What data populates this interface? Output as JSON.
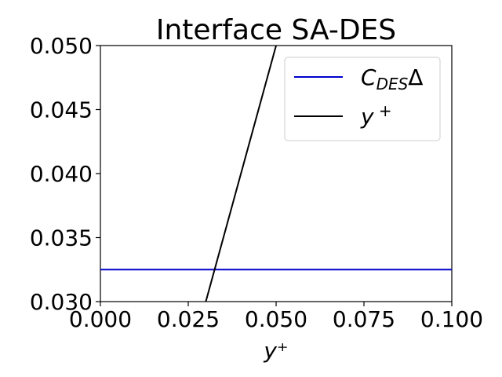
{
  "chart_data": {
    "type": "line",
    "title": "Interface SA-DES",
    "xlabel": "y⁺",
    "ylabel": "",
    "xlim": [
      0.0,
      0.1
    ],
    "ylim": [
      0.03,
      0.05
    ],
    "xticks": [
      "0.000",
      "0.025",
      "0.050",
      "0.075",
      "0.100"
    ],
    "yticks": [
      "0.030",
      "0.035",
      "0.040",
      "0.045",
      "0.050"
    ],
    "xtick_values": [
      0.0,
      0.025,
      0.05,
      0.075,
      0.1
    ],
    "ytick_values": [
      0.03,
      0.035,
      0.04,
      0.045,
      0.05
    ],
    "grid": false,
    "legend_position": "top-right",
    "series": [
      {
        "name": "C_DESΔ",
        "color": "#0000cc",
        "x": [
          0.0,
          0.1
        ],
        "y": [
          0.0325,
          0.0325
        ]
      },
      {
        "name": "y⁺",
        "color": "#000000",
        "x": [
          0.03,
          0.05
        ],
        "y": [
          0.03,
          0.05
        ]
      }
    ]
  }
}
